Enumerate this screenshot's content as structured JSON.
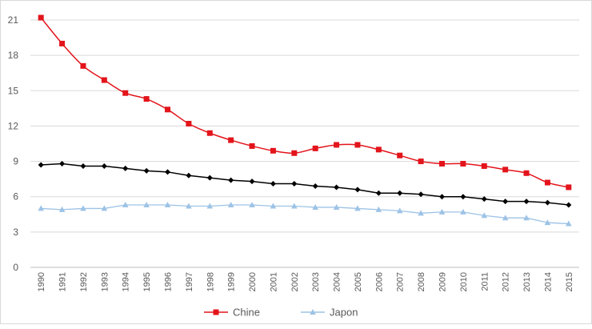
{
  "chart_data": {
    "type": "line",
    "title": "",
    "xlabel": "",
    "ylabel": "",
    "categories": [
      "1990",
      "1991",
      "1992",
      "1993",
      "1994",
      "1995",
      "1996",
      "1997",
      "1998",
      "1999",
      "2000",
      "2001",
      "2002",
      "2003",
      "2004",
      "2005",
      "2006",
      "2007",
      "2008",
      "2009",
      "2010",
      "2011",
      "2012",
      "2013",
      "2014",
      "2015"
    ],
    "ylim": [
      0,
      21
    ],
    "yticks": [
      0,
      3,
      6,
      9,
      12,
      15,
      18,
      21
    ],
    "grid": true,
    "legend_position": "bottom",
    "series": [
      {
        "name": "Chine",
        "color": "#e3141b",
        "marker": "square",
        "smooth": true,
        "in_legend": true,
        "values": [
          21.2,
          19.0,
          17.1,
          15.9,
          14.8,
          14.3,
          13.4,
          12.2,
          11.4,
          10.8,
          10.3,
          9.9,
          9.7,
          10.1,
          10.4,
          10.4,
          10.0,
          9.5,
          9.0,
          8.8,
          8.8,
          8.6,
          8.3,
          8.0,
          7.2,
          6.8
        ]
      },
      {
        "name": "",
        "color": "#000000",
        "marker": "diamond",
        "smooth": false,
        "in_legend": false,
        "values": [
          8.7,
          8.8,
          8.6,
          8.6,
          8.4,
          8.2,
          8.1,
          7.8,
          7.6,
          7.4,
          7.3,
          7.1,
          7.1,
          6.9,
          6.8,
          6.6,
          6.3,
          6.3,
          6.2,
          6.0,
          6.0,
          5.8,
          5.6,
          5.6,
          5.5,
          5.3
        ]
      },
      {
        "name": "Japon",
        "color": "#9dc3e6",
        "marker": "triangle",
        "smooth": false,
        "in_legend": true,
        "values": [
          5.0,
          4.9,
          5.0,
          5.0,
          5.3,
          5.3,
          5.3,
          5.2,
          5.2,
          5.3,
          5.3,
          5.2,
          5.2,
          5.1,
          5.1,
          5.0,
          4.9,
          4.8,
          4.6,
          4.7,
          4.7,
          4.4,
          4.2,
          4.2,
          3.8,
          3.7
        ]
      }
    ]
  }
}
